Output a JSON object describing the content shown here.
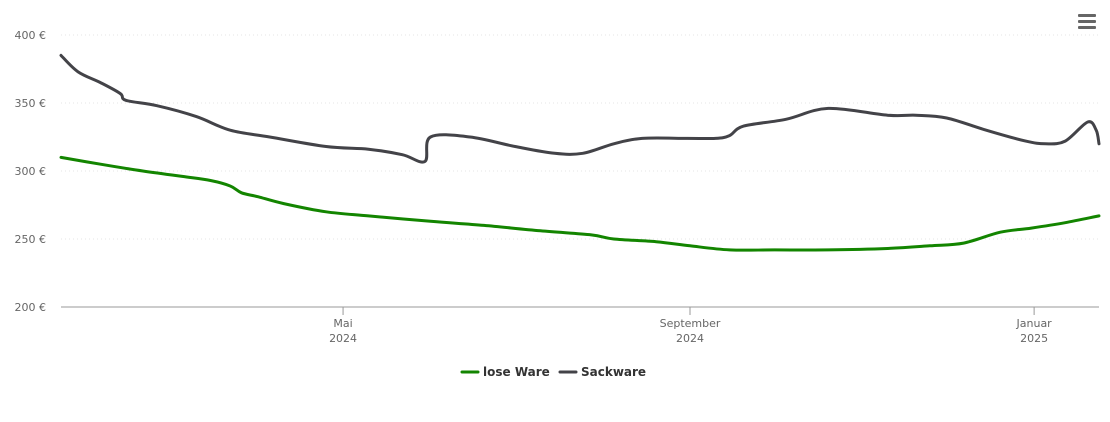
{
  "menu": {
    "icon": "hamburger-menu-icon"
  },
  "chart_data": {
    "type": "line",
    "title": "",
    "xlabel": "",
    "ylabel": "",
    "ylim": [
      200,
      400
    ],
    "yticks": [
      {
        "value": 200,
        "label": "200 €"
      },
      {
        "value": 250,
        "label": "250 €"
      },
      {
        "value": 300,
        "label": "300 €"
      },
      {
        "value": 350,
        "label": "350 €"
      },
      {
        "value": 400,
        "label": "400 €"
      }
    ],
    "xlim": [
      "2024-01-22",
      "2025-01-24"
    ],
    "xticks": [
      {
        "date": "2024-05-01",
        "label1": "Mai",
        "label2": "2024"
      },
      {
        "date": "2024-09-01",
        "label1": "September",
        "label2": "2024"
      },
      {
        "date": "2025-01-01",
        "label1": "Januar",
        "label2": "2025"
      }
    ],
    "grid": true,
    "legend_position": "bottom-center",
    "series": [
      {
        "name": "lose Ware",
        "color": "#138500",
        "points": [
          [
            "2024-01-22",
            310
          ],
          [
            "2024-02-05",
            305
          ],
          [
            "2024-02-20",
            300
          ],
          [
            "2024-03-05",
            296
          ],
          [
            "2024-03-15",
            293
          ],
          [
            "2024-03-22",
            289
          ],
          [
            "2024-03-26",
            284
          ],
          [
            "2024-04-01",
            281
          ],
          [
            "2024-04-10",
            276
          ],
          [
            "2024-04-25",
            270
          ],
          [
            "2024-05-10",
            267
          ],
          [
            "2024-06-01",
            263
          ],
          [
            "2024-06-20",
            260
          ],
          [
            "2024-07-10",
            256
          ],
          [
            "2024-07-28",
            253
          ],
          [
            "2024-08-05",
            250
          ],
          [
            "2024-08-20",
            248
          ],
          [
            "2024-09-01",
            245
          ],
          [
            "2024-09-15",
            242
          ],
          [
            "2024-10-01",
            242
          ],
          [
            "2024-10-20",
            242
          ],
          [
            "2024-11-10",
            243
          ],
          [
            "2024-11-25",
            245
          ],
          [
            "2024-12-07",
            247
          ],
          [
            "2024-12-20",
            255
          ],
          [
            "2024-12-31",
            258
          ],
          [
            "2025-01-12",
            262
          ],
          [
            "2025-01-24",
            267
          ]
        ]
      },
      {
        "name": "Sackware",
        "color": "#434348",
        "points": [
          [
            "2024-01-22",
            385
          ],
          [
            "2024-01-28",
            373
          ],
          [
            "2024-02-05",
            365
          ],
          [
            "2024-02-12",
            357
          ],
          [
            "2024-02-14",
            352
          ],
          [
            "2024-02-25",
            348
          ],
          [
            "2024-03-10",
            340
          ],
          [
            "2024-03-22",
            330
          ],
          [
            "2024-04-05",
            325
          ],
          [
            "2024-04-25",
            318
          ],
          [
            "2024-05-10",
            316
          ],
          [
            "2024-05-22",
            312
          ],
          [
            "2024-05-30",
            307
          ],
          [
            "2024-06-01",
            325
          ],
          [
            "2024-06-15",
            325
          ],
          [
            "2024-07-01",
            318
          ],
          [
            "2024-07-15",
            313
          ],
          [
            "2024-07-25",
            313
          ],
          [
            "2024-08-05",
            320
          ],
          [
            "2024-08-15",
            324
          ],
          [
            "2024-08-31",
            324
          ],
          [
            "2024-09-10",
            324
          ],
          [
            "2024-09-15",
            326
          ],
          [
            "2024-09-20",
            333
          ],
          [
            "2024-10-05",
            338
          ],
          [
            "2024-10-20",
            346
          ],
          [
            "2024-11-10",
            341
          ],
          [
            "2024-11-20",
            341
          ],
          [
            "2024-12-01",
            339
          ],
          [
            "2024-12-15",
            330
          ],
          [
            "2024-12-29",
            322
          ],
          [
            "2025-01-05",
            320
          ],
          [
            "2025-01-12",
            322
          ],
          [
            "2025-01-20",
            336
          ],
          [
            "2025-01-23",
            330
          ],
          [
            "2025-01-24",
            320
          ]
        ]
      }
    ]
  }
}
